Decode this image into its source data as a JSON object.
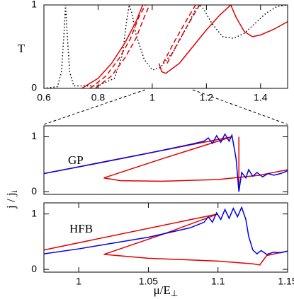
{
  "chart_data": [
    {
      "type": "line",
      "y_label": "T",
      "xlim": [
        0.6,
        1.5
      ],
      "ylim": [
        0,
        1
      ],
      "xticks": [
        0.6,
        0.8,
        1,
        1.2,
        1.4
      ],
      "yticks": [
        0,
        1
      ],
      "series": [
        {
          "color": "#000000",
          "style": "dotted",
          "x": [
            0.6,
            0.65,
            0.665,
            0.675,
            0.68,
            0.685,
            0.695,
            0.71,
            0.8,
            0.86,
            0.89,
            0.905,
            0.915,
            0.925,
            0.94,
            0.97,
            1.0,
            1.03,
            1.08,
            1.13,
            1.16,
            1.175,
            1.19,
            1.22,
            1.26,
            1.3,
            1.34,
            1.38,
            1.42,
            1.46,
            1.5
          ],
          "values": [
            0,
            0.02,
            0.2,
            0.7,
            1,
            0.7,
            0.2,
            0.03,
            0.03,
            0.12,
            0.4,
            0.8,
            1,
            0.9,
            0.65,
            0.35,
            0.22,
            0.25,
            0.45,
            0.75,
            0.95,
            1,
            0.95,
            0.78,
            0.62,
            0.6,
            0.66,
            0.78,
            0.9,
            0.98,
            1
          ]
        },
        {
          "color": "#e00000",
          "style": "dashed",
          "x": [
            0.79,
            0.85,
            0.9,
            0.94,
            0.97,
            0.99
          ],
          "values": [
            0,
            0.15,
            0.37,
            0.6,
            0.85,
            1
          ]
        },
        {
          "color": "#e00000",
          "style": "dashed",
          "x": [
            0.77,
            0.83,
            0.88,
            0.92,
            0.95,
            0.975
          ],
          "values": [
            0,
            0.15,
            0.37,
            0.6,
            0.85,
            1
          ]
        },
        {
          "color": "#e00000",
          "style": "dashed",
          "x": [
            1.04,
            1.08,
            1.12,
            1.16
          ],
          "values": [
            0.3,
            0.55,
            0.78,
            1
          ]
        },
        {
          "color": "#e00000",
          "style": "dashed",
          "x": [
            1.055,
            1.095,
            1.135,
            1.175
          ],
          "values": [
            0.3,
            0.55,
            0.78,
            1
          ]
        },
        {
          "color": "#e00000",
          "style": "solid",
          "x": [
            0.74,
            0.8,
            0.85,
            0.9,
            0.94,
            0.965
          ],
          "values": [
            0,
            0.12,
            0.3,
            0.55,
            0.8,
            1
          ]
        },
        {
          "color": "#e00000",
          "style": "solid",
          "x": [
            1.025,
            1.035,
            1.05,
            1.1,
            1.15,
            1.2,
            1.25,
            1.29,
            1.31,
            1.34,
            1.37,
            1.4,
            1.45,
            1.5
          ],
          "values": [
            0.3,
            0.2,
            0.18,
            0.3,
            0.5,
            0.7,
            0.88,
            1,
            0.85,
            0.68,
            0.62,
            0.64,
            0.71,
            0.8
          ]
        }
      ]
    },
    {
      "type": "line",
      "annotation": "GP",
      "xlim": [
        0.975,
        1.15
      ],
      "ylim": [
        -0.05,
        1.2
      ],
      "yticks": [
        0,
        1
      ],
      "series": [
        {
          "color": "#e00000",
          "style": "solid",
          "x": [
            0.975,
            1.11,
            1.06,
            1.018,
            1.03,
            1.06,
            1.1,
            1.13,
            1.15
          ],
          "values": [
            0.33,
            1.0,
            0.6,
            0.25,
            0.2,
            0.19,
            0.22,
            0.3,
            0.4
          ]
        },
        {
          "color": "#e00000",
          "style": "solid",
          "x": [
            1.115,
            1.115
          ],
          "values": [
            1.0,
            0
          ]
        },
        {
          "color": "#0000ee",
          "style": "solid",
          "x": [
            0.975,
            1.0,
            1.05,
            1.08,
            1.09,
            1.093,
            1.096,
            1.099,
            1.102,
            1.105,
            1.108,
            1.11,
            1.113,
            1.115,
            1.117,
            1.12,
            1.122,
            1.125,
            1.128,
            1.132,
            1.136,
            1.14,
            1.145,
            1.15
          ],
          "values": [
            0.33,
            0.45,
            0.7,
            0.86,
            0.92,
            0.98,
            0.88,
            1.02,
            0.9,
            1.05,
            0.92,
            1.03,
            0.6,
            0.0,
            0.35,
            0.25,
            0.4,
            0.28,
            0.35,
            0.27,
            0.33,
            0.3,
            0.33,
            0.38
          ]
        }
      ]
    },
    {
      "type": "line",
      "annotation": "HFB",
      "x_label": "μ/E",
      "x_label_sub": "⊥",
      "y_label": "j / j",
      "y_label_sub": "i",
      "xlim": [
        0.975,
        1.15
      ],
      "ylim": [
        -0.05,
        1.2
      ],
      "xticks": [
        1,
        1.05,
        1.1,
        1.15
      ],
      "yticks": [
        0,
        1
      ],
      "series": [
        {
          "color": "#e00000",
          "style": "solid",
          "x": [
            0.975,
            1.1,
            1.06,
            1.018,
            1.05,
            1.1,
            1.125,
            1.13,
            1.135,
            1.15
          ],
          "values": [
            0.35,
            1.0,
            0.63,
            0.27,
            0.2,
            0.15,
            0.1,
            0.08,
            0.25,
            0.33
          ]
        },
        {
          "color": "#0000ee",
          "style": "solid",
          "x": [
            0.975,
            1.0,
            1.05,
            1.08,
            1.09,
            1.093,
            1.096,
            1.099,
            1.102,
            1.105,
            1.108,
            1.111,
            1.114,
            1.117,
            1.12,
            1.122,
            1.125,
            1.128,
            1.131,
            1.135,
            1.14,
            1.145,
            1.15
          ],
          "values": [
            0.28,
            0.37,
            0.58,
            0.75,
            0.85,
            0.95,
            0.85,
            1.02,
            0.9,
            1.08,
            0.92,
            1.1,
            0.95,
            1.12,
            0.9,
            0.6,
            0.35,
            0.28,
            0.34,
            0.27,
            0.31,
            0.3,
            0.33
          ]
        }
      ]
    }
  ]
}
